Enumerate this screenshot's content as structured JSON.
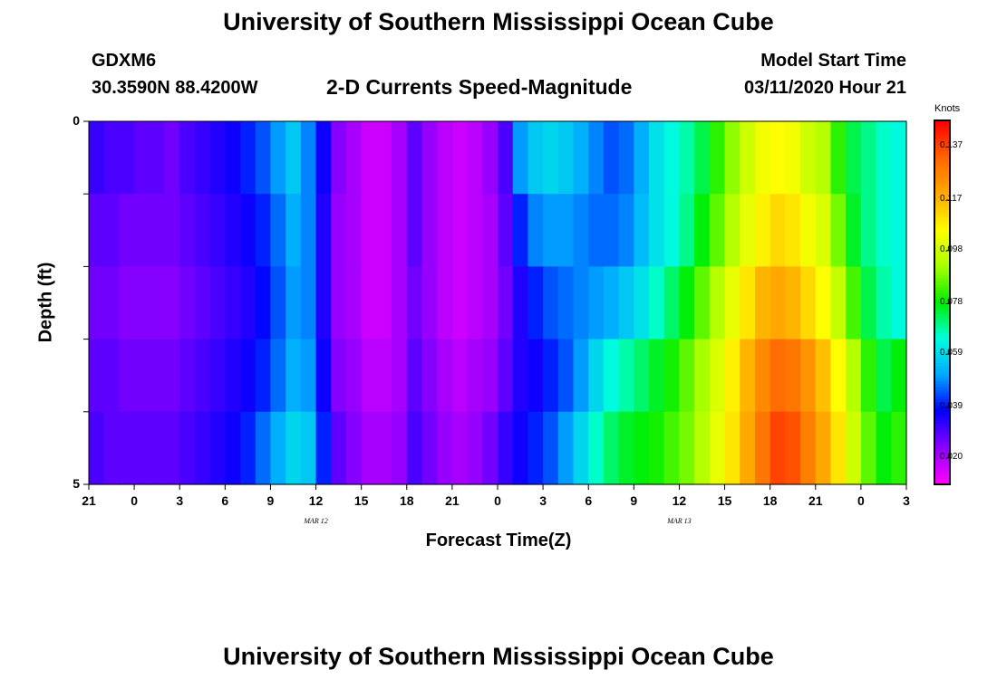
{
  "page": {
    "title_top": "University of Southern Mississippi Ocean Cube",
    "title_bottom": "University of Southern Mississippi Ocean Cube",
    "station_id": "GDXM6",
    "station_coords": "30.3590N 88.4200W",
    "plot_title": "2-D Currents Speed-Magnitude",
    "model_start_label": "Model Start Time",
    "model_start_value": "03/11/2020 Hour 21"
  },
  "chart_data": {
    "type": "heatmap",
    "title": "2-D Currents Speed-Magnitude",
    "xlabel": "Forecast Time(Z)",
    "ylabel": "Depth (ft)",
    "ylim": [
      0,
      5
    ],
    "y_ticks": [
      "0",
      "5"
    ],
    "x_ticks": [
      "21",
      "0",
      "3",
      "6",
      "9",
      "12",
      "15",
      "18",
      "21",
      "0",
      "3",
      "6",
      "9",
      "12",
      "15",
      "18",
      "21",
      "0",
      "3"
    ],
    "date_labels": [
      {
        "text": "MAR 12",
        "at_tick": 5
      },
      {
        "text": "MAR 13",
        "at_tick": 13
      }
    ],
    "colorbar": {
      "unit": "Knots",
      "ticks": [
        "0.137",
        "0.117",
        "0.098",
        "0.078",
        "0.059",
        "0.039",
        "0.020"
      ],
      "range": [
        0.01,
        0.147
      ],
      "colors": [
        "#ff00ff",
        "#8800ff",
        "#0000ff",
        "#00aaff",
        "#00ffdd",
        "#00ee00",
        "#aaff00",
        "#ffff00",
        "#ffaa00",
        "#ff6600",
        "#ff0000"
      ]
    },
    "depth_bands": 5,
    "columns": 54,
    "values": [
      [
        0.032,
        0.03,
        0.03,
        0.028,
        0.028,
        0.026,
        0.03,
        0.032,
        0.034,
        0.036,
        0.04,
        0.044,
        0.05,
        0.056,
        0.048,
        0.036,
        0.024,
        0.02,
        0.016,
        0.016,
        0.02,
        0.028,
        0.022,
        0.018,
        0.016,
        0.018,
        0.022,
        0.03,
        0.05,
        0.056,
        0.058,
        0.056,
        0.052,
        0.048,
        0.044,
        0.046,
        0.052,
        0.06,
        0.064,
        0.068,
        0.074,
        0.082,
        0.09,
        0.098,
        0.104,
        0.106,
        0.104,
        0.098,
        0.094,
        0.082,
        0.074,
        0.07,
        0.066,
        0.064
      ],
      [
        0.028,
        0.028,
        0.026,
        0.026,
        0.026,
        0.026,
        0.028,
        0.03,
        0.032,
        0.034,
        0.036,
        0.04,
        0.046,
        0.052,
        0.048,
        0.034,
        0.022,
        0.02,
        0.016,
        0.016,
        0.02,
        0.028,
        0.022,
        0.018,
        0.016,
        0.018,
        0.02,
        0.028,
        0.04,
        0.048,
        0.05,
        0.05,
        0.048,
        0.046,
        0.046,
        0.048,
        0.054,
        0.06,
        0.064,
        0.07,
        0.078,
        0.086,
        0.094,
        0.102,
        0.108,
        0.112,
        0.11,
        0.104,
        0.1,
        0.088,
        0.076,
        0.07,
        0.066,
        0.064
      ],
      [
        0.026,
        0.026,
        0.024,
        0.024,
        0.024,
        0.024,
        0.026,
        0.028,
        0.03,
        0.032,
        0.034,
        0.038,
        0.044,
        0.05,
        0.048,
        0.034,
        0.022,
        0.02,
        0.016,
        0.016,
        0.02,
        0.026,
        0.022,
        0.018,
        0.016,
        0.018,
        0.02,
        0.026,
        0.034,
        0.04,
        0.044,
        0.046,
        0.048,
        0.05,
        0.052,
        0.056,
        0.06,
        0.066,
        0.072,
        0.078,
        0.086,
        0.094,
        0.102,
        0.11,
        0.118,
        0.12,
        0.118,
        0.112,
        0.106,
        0.096,
        0.084,
        0.074,
        0.068,
        0.064
      ],
      [
        0.028,
        0.028,
        0.026,
        0.026,
        0.026,
        0.026,
        0.028,
        0.03,
        0.032,
        0.034,
        0.036,
        0.04,
        0.046,
        0.052,
        0.05,
        0.036,
        0.024,
        0.022,
        0.018,
        0.018,
        0.02,
        0.028,
        0.024,
        0.02,
        0.018,
        0.02,
        0.022,
        0.028,
        0.034,
        0.036,
        0.04,
        0.044,
        0.05,
        0.058,
        0.064,
        0.068,
        0.072,
        0.076,
        0.08,
        0.086,
        0.092,
        0.1,
        0.108,
        0.118,
        0.126,
        0.132,
        0.13,
        0.124,
        0.116,
        0.106,
        0.094,
        0.082,
        0.074,
        0.078
      ],
      [
        0.03,
        0.028,
        0.028,
        0.028,
        0.028,
        0.028,
        0.03,
        0.032,
        0.034,
        0.036,
        0.04,
        0.046,
        0.052,
        0.058,
        0.056,
        0.04,
        0.028,
        0.024,
        0.02,
        0.02,
        0.022,
        0.03,
        0.026,
        0.022,
        0.02,
        0.022,
        0.026,
        0.032,
        0.036,
        0.04,
        0.044,
        0.05,
        0.058,
        0.066,
        0.072,
        0.076,
        0.078,
        0.08,
        0.084,
        0.088,
        0.094,
        0.102,
        0.11,
        0.12,
        0.13,
        0.138,
        0.136,
        0.128,
        0.12,
        0.11,
        0.098,
        0.086,
        0.078,
        0.082
      ]
    ]
  }
}
